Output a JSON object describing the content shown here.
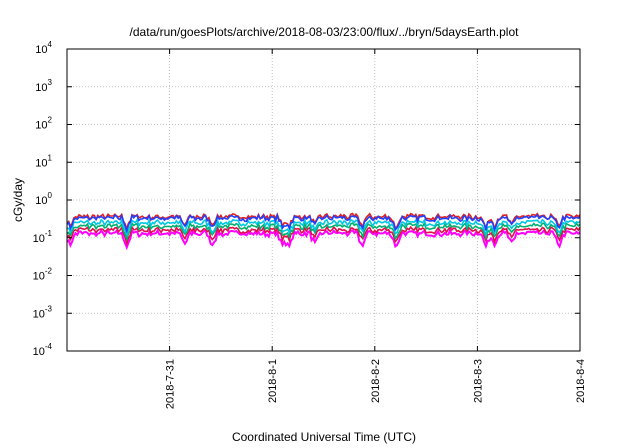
{
  "chart_data": {
    "type": "line",
    "title": "/data/run/goesPlots/archive/2018-08-03/23:00/flux/../bryn/5daysEarth.plot",
    "xlabel": "Coordinated Universal Time (UTC)",
    "ylabel": "cGy/day",
    "y_scale": "log",
    "ylim": [
      0.0001,
      10000
    ],
    "y_ticks": [
      {
        "value": 0.0001,
        "base": "10",
        "exp": "-4"
      },
      {
        "value": 0.001,
        "base": "10",
        "exp": "-3"
      },
      {
        "value": 0.01,
        "base": "10",
        "exp": "-2"
      },
      {
        "value": 0.1,
        "base": "10",
        "exp": "-1"
      },
      {
        "value": 1,
        "base": "10",
        "exp": "0"
      },
      {
        "value": 10,
        "base": "10",
        "exp": "1"
      },
      {
        "value": 100,
        "base": "10",
        "exp": "2"
      },
      {
        "value": 1000,
        "base": "10",
        "exp": "3"
      },
      {
        "value": 10000,
        "base": "10",
        "exp": "4"
      }
    ],
    "x_range_days": [
      "2018-07-30T00:00",
      "2018-08-04T00:00"
    ],
    "x_ticks": [
      {
        "date": "2018-07-31",
        "label": "2018-7-31"
      },
      {
        "date": "2018-08-01",
        "label": "2018-8-1"
      },
      {
        "date": "2018-08-02",
        "label": "2018-8-2"
      },
      {
        "date": "2018-08-03",
        "label": "2018-8-3"
      },
      {
        "date": "2018-08-04",
        "label": "2018-8-4"
      }
    ],
    "grid": true,
    "legend": "none",
    "series": [
      {
        "color": "#ff00ff",
        "base": 0.13
      },
      {
        "color": "#e0104a",
        "base": 0.16
      },
      {
        "color": "#00b070",
        "base": 0.2
      },
      {
        "color": "#00c8e0",
        "base": 0.25
      },
      {
        "color": "#e02020",
        "base": 0.36
      },
      {
        "color": "#2040ff",
        "base": 0.33
      }
    ],
    "dips": [
      {
        "date": "2018-07-30T00:40",
        "factor": 0.55
      },
      {
        "date": "2018-07-30T14:00",
        "factor": 0.5
      },
      {
        "date": "2018-07-31T03:30",
        "factor": 0.55
      },
      {
        "date": "2018-07-31T10:00",
        "factor": 0.6
      },
      {
        "date": "2018-08-01T02:30",
        "factor": 0.5
      },
      {
        "date": "2018-08-01T04:00",
        "factor": 0.6
      },
      {
        "date": "2018-08-01T10:00",
        "factor": 0.6
      },
      {
        "date": "2018-08-01T21:00",
        "factor": 0.55
      },
      {
        "date": "2018-08-02T05:00",
        "factor": 0.45
      },
      {
        "date": "2018-08-03T02:00",
        "factor": 0.5
      },
      {
        "date": "2018-08-03T04:00",
        "factor": 0.6
      },
      {
        "date": "2018-08-03T08:00",
        "factor": 0.6
      },
      {
        "date": "2018-08-03T19:00",
        "factor": 0.5
      }
    ]
  }
}
